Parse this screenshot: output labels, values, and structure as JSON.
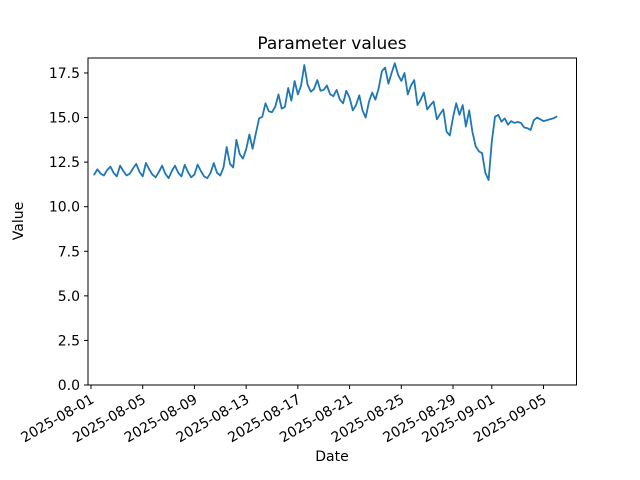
{
  "figure": {
    "background": "#ffffff"
  },
  "chart_data": {
    "type": "line",
    "title": "Parameter values",
    "xlabel": "Date",
    "ylabel": "Value",
    "grid": false,
    "legend": null,
    "line_color": "#1f77b4",
    "axis_color": "#000000",
    "x_tick_labels": [
      "2025-08-01",
      "2025-08-05",
      "2025-08-09",
      "2025-08-13",
      "2025-08-17",
      "2025-08-21",
      "2025-08-25",
      "2025-08-29",
      "2025-09-01",
      "2025-09-05"
    ],
    "x_tick_day_offsets": [
      0,
      4,
      8,
      12,
      16,
      20,
      24,
      28,
      31,
      35
    ],
    "y_tick_labels": [
      "0.0",
      "2.5",
      "5.0",
      "7.5",
      "10.0",
      "12.5",
      "15.0",
      "17.5"
    ],
    "y_tick_values": [
      0,
      2.5,
      5,
      7.5,
      10,
      12.5,
      15,
      17.5
    ],
    "xlim_day_offsets": [
      -0.23,
      37.55
    ],
    "ylim": [
      0,
      18.34
    ],
    "x_unit": "days since 2025-08-01",
    "sample_interval_hours": 6,
    "x_day_offsets": [
      0.25,
      0.5,
      0.75,
      1.0,
      1.25,
      1.5,
      1.75,
      2.0,
      2.25,
      2.5,
      2.75,
      3.0,
      3.25,
      3.5,
      3.75,
      4.0,
      4.25,
      4.5,
      4.75,
      5.0,
      5.25,
      5.5,
      5.75,
      6.0,
      6.25,
      6.5,
      6.75,
      7.0,
      7.25,
      7.5,
      7.75,
      8.0,
      8.25,
      8.5,
      8.75,
      9.0,
      9.25,
      9.5,
      9.75,
      10.0,
      10.25,
      10.5,
      10.75,
      11.0,
      11.25,
      11.5,
      11.75,
      12.0,
      12.25,
      12.5,
      12.75,
      13.0,
      13.25,
      13.5,
      13.75,
      14.0,
      14.25,
      14.5,
      14.75,
      15.0,
      15.25,
      15.5,
      15.75,
      16.0,
      16.25,
      16.5,
      16.75,
      17.0,
      17.25,
      17.5,
      17.75,
      18.0,
      18.25,
      18.5,
      18.75,
      19.0,
      19.25,
      19.5,
      19.75,
      20.0,
      20.25,
      20.5,
      20.75,
      21.0,
      21.25,
      21.5,
      21.75,
      22.0,
      22.25,
      22.5,
      22.75,
      23.0,
      23.25,
      23.5,
      23.75,
      24.0,
      24.25,
      24.5,
      24.75,
      25.0,
      25.25,
      25.5,
      25.75,
      26.0,
      26.25,
      26.5,
      26.75,
      27.0,
      27.25,
      27.5,
      27.75,
      28.0,
      28.25,
      28.5,
      28.75,
      29.0,
      29.25,
      29.5,
      29.75,
      30.0,
      30.25,
      30.5,
      30.75,
      31.0,
      31.25,
      31.5,
      31.75,
      32.0,
      32.25,
      32.5,
      32.75,
      33.0,
      33.25,
      33.5,
      33.75,
      34.0,
      34.25,
      34.5,
      34.75,
      35.0,
      35.25,
      35.5,
      35.75,
      36.0
    ],
    "values": [
      11.8,
      12.1,
      11.85,
      11.75,
      12.05,
      12.25,
      11.9,
      11.7,
      12.3,
      12.0,
      11.75,
      11.85,
      12.15,
      12.4,
      11.95,
      11.7,
      12.45,
      12.1,
      11.8,
      11.65,
      11.95,
      12.3,
      11.85,
      11.6,
      12.0,
      12.3,
      11.9,
      11.7,
      12.35,
      11.95,
      11.65,
      11.8,
      12.36,
      12.0,
      11.7,
      11.6,
      11.9,
      12.45,
      11.9,
      11.75,
      12.2,
      13.35,
      12.4,
      12.2,
      13.75,
      12.95,
      12.7,
      13.2,
      14.05,
      13.25,
      14.1,
      14.95,
      15.05,
      15.8,
      15.35,
      15.3,
      15.6,
      16.3,
      15.5,
      15.6,
      16.66,
      15.95,
      17.05,
      16.3,
      16.8,
      17.95,
      16.85,
      16.45,
      16.6,
      17.1,
      16.5,
      16.55,
      16.8,
      16.3,
      16.2,
      16.55,
      16.0,
      15.8,
      16.5,
      16.1,
      15.4,
      15.7,
      16.25,
      15.4,
      15.0,
      15.9,
      16.4,
      16.0,
      16.65,
      17.6,
      17.8,
      16.9,
      17.5,
      18.05,
      17.4,
      17.05,
      17.5,
      16.3,
      16.8,
      17.1,
      15.7,
      16.0,
      16.4,
      15.45,
      15.7,
      15.9,
      14.9,
      15.2,
      15.45,
      14.2,
      14.0,
      15.0,
      15.8,
      15.15,
      15.7,
      14.5,
      15.4,
      14.2,
      13.4,
      13.1,
      13.0,
      11.9,
      11.5,
      13.65,
      15.05,
      15.15,
      14.77,
      14.95,
      14.6,
      14.8,
      14.7,
      14.75,
      14.7,
      14.45,
      14.4,
      14.3,
      14.85,
      15.0,
      14.9,
      14.8,
      14.85,
      14.9,
      14.95,
      15.05
    ]
  }
}
